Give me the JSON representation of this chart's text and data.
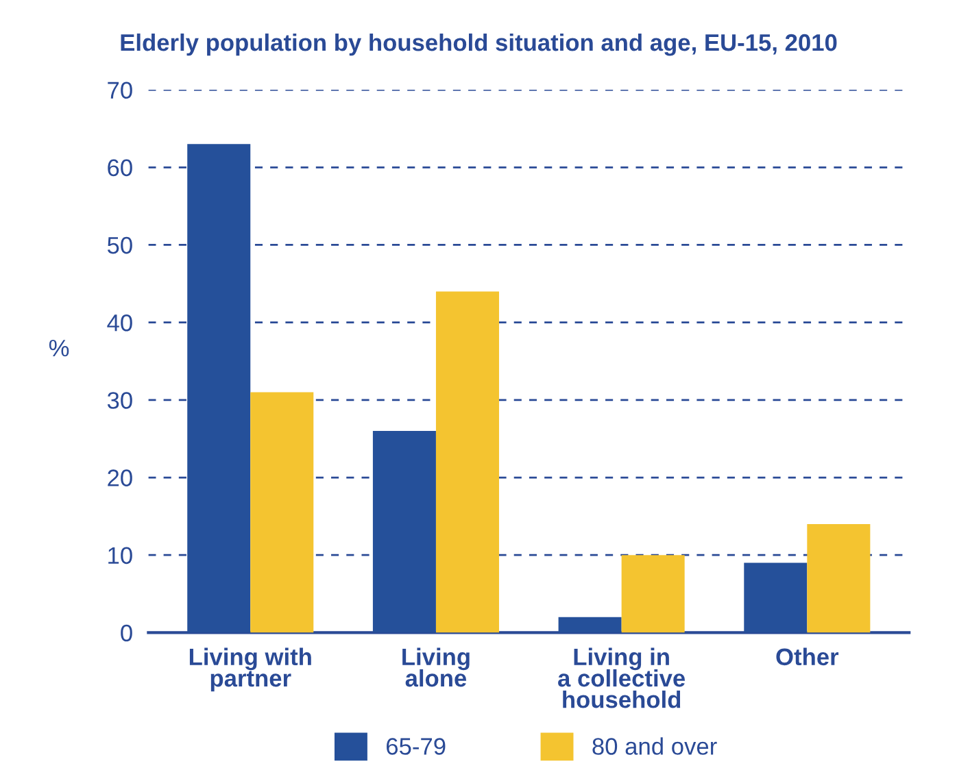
{
  "chart_data": {
    "type": "bar",
    "title": "Elderly population by household situation and age, EU-15, 2010",
    "ylabel": "%",
    "categories": [
      "Living with\npartner",
      "Living\nalone",
      "Living in\na collective\nhousehold",
      "Other"
    ],
    "series": [
      {
        "name": "65-79",
        "color": "#25509a",
        "values": [
          63,
          26,
          2,
          9
        ]
      },
      {
        "name": "80 and over",
        "color": "#f4c430",
        "values": [
          31,
          44,
          10,
          14
        ]
      }
    ],
    "ylim": [
      0,
      70
    ],
    "yticks": [
      0,
      10,
      20,
      30,
      40,
      50,
      60,
      70
    ],
    "grid": "y",
    "legend": "bottom"
  }
}
